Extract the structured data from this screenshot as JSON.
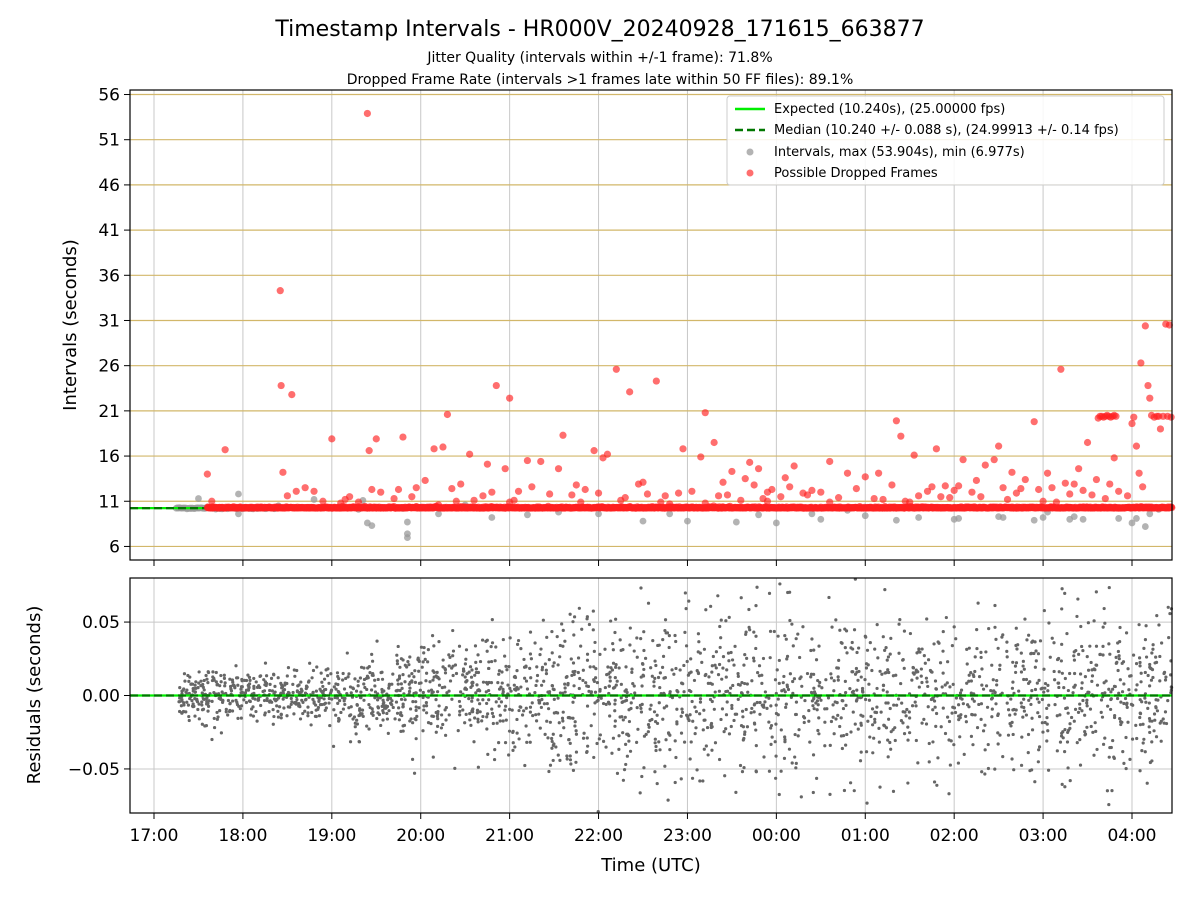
{
  "title": "Timestamp Intervals - HR000V_20240928_171615_663877",
  "subtitle_1": "Jitter Quality (intervals within +/-1 frame): 71.8%",
  "subtitle_2": "Dropped Frame Rate (intervals >1 frames late within 50 FF files): 89.1%",
  "colors": {
    "expected": "#00ee00",
    "median": "#007700",
    "intervals": "#9a9a9a",
    "dropped": "#ff2020",
    "residuals": "#666666",
    "hgrid_top": "#d2b76a",
    "grid": "#c8c8c8"
  },
  "chart_data": [
    {
      "type": "scatter",
      "name": "intervals",
      "xlabel": "",
      "ylabel": "Intervals (seconds)",
      "x_unit": "hours since 17:00 UTC",
      "xlim": [
        -0.27,
        11.45
      ],
      "ylim": [
        4.5,
        56.5
      ],
      "yticks": [
        6,
        11,
        16,
        21,
        26,
        31,
        36,
        41,
        46,
        51,
        56
      ],
      "ytick_labels": [
        "6",
        "11",
        "16",
        "21",
        "26",
        "31",
        "36",
        "41",
        "46",
        "51",
        "56"
      ],
      "grid": true,
      "legend_position": "top-right",
      "legend": [
        {
          "label": "Expected (10.240s), (25.00000 fps)",
          "style": "solid-line"
        },
        {
          "label": "Median (10.240 +/- 0.088 s), (24.99913 +/- 0.14 fps)",
          "style": "dashed-line"
        },
        {
          "label": "Intervals, max (53.904s), min (6.977s)",
          "style": "gray-dot"
        },
        {
          "label": "Possible Dropped Frames",
          "style": "red-dot"
        }
      ],
      "expected_line": 10.24,
      "median_line": 10.24,
      "band_start": 0.6,
      "band_end": 11.45,
      "band_value": 10.24,
      "gray_band": [
        0.25,
        1.4
      ],
      "gray_points": [
        [
          0.5,
          11.3
        ],
        [
          0.95,
          9.6
        ],
        [
          0.95,
          11.8
        ],
        [
          1.4,
          10.5
        ],
        [
          1.75,
          10.3
        ],
        [
          1.8,
          11.2
        ],
        [
          2.3,
          10.1
        ],
        [
          2.35,
          11.1
        ],
        [
          2.4,
          8.6
        ],
        [
          2.45,
          8.3
        ],
        [
          2.8,
          10.2
        ],
        [
          2.85,
          8.7
        ],
        [
          2.85,
          6.98
        ],
        [
          2.85,
          7.4
        ],
        [
          3.2,
          9.6
        ],
        [
          3.5,
          10.6
        ],
        [
          3.8,
          9.2
        ],
        [
          4.2,
          9.5
        ],
        [
          4.55,
          9.8
        ],
        [
          5.0,
          9.6
        ],
        [
          5.5,
          8.8
        ],
        [
          5.8,
          9.6
        ],
        [
          6.0,
          8.8
        ],
        [
          6.55,
          8.7
        ],
        [
          6.8,
          9.5
        ],
        [
          7.0,
          8.6
        ],
        [
          7.4,
          9.6
        ],
        [
          7.5,
          9.0
        ],
        [
          7.8,
          10.0
        ],
        [
          8.0,
          9.4
        ],
        [
          8.35,
          8.9
        ],
        [
          8.6,
          9.2
        ],
        [
          9.0,
          9.0
        ],
        [
          9.05,
          9.1
        ],
        [
          9.5,
          9.3
        ],
        [
          9.55,
          9.2
        ],
        [
          9.9,
          8.9
        ],
        [
          10.0,
          9.2
        ],
        [
          10.05,
          9.8
        ],
        [
          10.3,
          9.0
        ],
        [
          10.35,
          9.3
        ],
        [
          10.45,
          9.0
        ],
        [
          10.85,
          9.1
        ],
        [
          11.0,
          8.6
        ],
        [
          11.05,
          9.1
        ],
        [
          11.15,
          8.2
        ],
        [
          11.2,
          9.6
        ],
        [
          11.3,
          10.1
        ]
      ],
      "dropped_points": [
        [
          0.6,
          14.0
        ],
        [
          0.65,
          11.0
        ],
        [
          0.8,
          16.7
        ],
        [
          1.42,
          34.3
        ],
        [
          1.43,
          23.8
        ],
        [
          1.45,
          14.2
        ],
        [
          1.5,
          11.6
        ],
        [
          1.55,
          22.8
        ],
        [
          1.6,
          12.1
        ],
        [
          1.7,
          12.5
        ],
        [
          1.8,
          12.1
        ],
        [
          1.9,
          11.0
        ],
        [
          2.0,
          17.9
        ],
        [
          2.1,
          10.8
        ],
        [
          2.15,
          11.2
        ],
        [
          2.2,
          11.5
        ],
        [
          2.3,
          10.9
        ],
        [
          2.4,
          53.904
        ],
        [
          2.42,
          16.6
        ],
        [
          2.45,
          12.3
        ],
        [
          2.5,
          17.9
        ],
        [
          2.55,
          12.0
        ],
        [
          2.7,
          11.3
        ],
        [
          2.75,
          12.3
        ],
        [
          2.8,
          18.1
        ],
        [
          2.9,
          11.5
        ],
        [
          2.95,
          12.5
        ],
        [
          3.05,
          13.3
        ],
        [
          3.15,
          16.8
        ],
        [
          3.2,
          10.6
        ],
        [
          3.25,
          17.0
        ],
        [
          3.3,
          20.6
        ],
        [
          3.35,
          12.4
        ],
        [
          3.45,
          12.9
        ],
        [
          3.55,
          16.2
        ],
        [
          3.6,
          11.1
        ],
        [
          3.7,
          11.6
        ],
        [
          3.75,
          15.1
        ],
        [
          3.8,
          12.0
        ],
        [
          3.85,
          23.8
        ],
        [
          3.95,
          14.6
        ],
        [
          4.0,
          22.4
        ],
        [
          4.05,
          11.1
        ],
        [
          4.1,
          12.1
        ],
        [
          4.2,
          15.5
        ],
        [
          4.25,
          12.6
        ],
        [
          4.35,
          15.4
        ],
        [
          4.45,
          11.8
        ],
        [
          4.55,
          14.6
        ],
        [
          4.6,
          18.3
        ],
        [
          4.7,
          11.7
        ],
        [
          4.75,
          12.8
        ],
        [
          4.85,
          12.3
        ],
        [
          4.95,
          16.6
        ],
        [
          5.0,
          11.9
        ],
        [
          5.05,
          15.8
        ],
        [
          5.1,
          16.2
        ],
        [
          5.2,
          25.6
        ],
        [
          5.25,
          11.1
        ],
        [
          5.3,
          11.4
        ],
        [
          5.35,
          23.1
        ],
        [
          5.45,
          12.9
        ],
        [
          5.5,
          13.1
        ],
        [
          5.55,
          11.8
        ],
        [
          5.65,
          24.3
        ],
        [
          5.75,
          11.6
        ],
        [
          5.8,
          10.7
        ],
        [
          5.9,
          11.9
        ],
        [
          5.95,
          16.8
        ],
        [
          6.05,
          12.1
        ],
        [
          6.15,
          15.9
        ],
        [
          6.2,
          20.8
        ],
        [
          6.3,
          17.5
        ],
        [
          6.35,
          11.6
        ],
        [
          6.4,
          13.1
        ],
        [
          6.45,
          11.7
        ],
        [
          6.5,
          14.3
        ],
        [
          6.6,
          11.1
        ],
        [
          6.65,
          13.5
        ],
        [
          6.7,
          15.3
        ],
        [
          6.75,
          12.8
        ],
        [
          6.8,
          14.6
        ],
        [
          6.85,
          11.3
        ],
        [
          6.9,
          12.0
        ],
        [
          6.95,
          12.3
        ],
        [
          7.05,
          11.5
        ],
        [
          7.1,
          13.6
        ],
        [
          7.15,
          12.6
        ],
        [
          7.2,
          14.9
        ],
        [
          7.3,
          11.9
        ],
        [
          7.35,
          11.7
        ],
        [
          7.4,
          12.2
        ],
        [
          7.5,
          12.0
        ],
        [
          7.6,
          15.4
        ],
        [
          7.7,
          11.4
        ],
        [
          7.8,
          14.1
        ],
        [
          7.9,
          12.4
        ],
        [
          8.0,
          13.7
        ],
        [
          8.1,
          11.3
        ],
        [
          8.15,
          14.1
        ],
        [
          8.2,
          11.2
        ],
        [
          8.3,
          12.8
        ],
        [
          8.35,
          19.9
        ],
        [
          8.4,
          18.2
        ],
        [
          8.45,
          11.0
        ],
        [
          8.55,
          16.1
        ],
        [
          8.6,
          11.6
        ],
        [
          8.7,
          12.1
        ],
        [
          8.75,
          12.6
        ],
        [
          8.8,
          16.8
        ],
        [
          8.85,
          11.5
        ],
        [
          8.9,
          12.7
        ],
        [
          8.95,
          11.4
        ],
        [
          9.0,
          12.2
        ],
        [
          9.05,
          12.7
        ],
        [
          9.1,
          15.6
        ],
        [
          9.2,
          12.0
        ],
        [
          9.25,
          13.3
        ],
        [
          9.3,
          11.5
        ],
        [
          9.35,
          15.0
        ],
        [
          9.45,
          15.6
        ],
        [
          9.5,
          17.1
        ],
        [
          9.55,
          12.5
        ],
        [
          9.6,
          11.2
        ],
        [
          9.65,
          14.2
        ],
        [
          9.75,
          12.4
        ],
        [
          9.8,
          13.4
        ],
        [
          9.9,
          19.8
        ],
        [
          9.95,
          12.3
        ],
        [
          10.0,
          11.0
        ],
        [
          10.05,
          14.1
        ],
        [
          10.1,
          12.5
        ],
        [
          10.2,
          25.6
        ],
        [
          10.25,
          13.0
        ],
        [
          10.3,
          11.8
        ],
        [
          10.35,
          12.9
        ],
        [
          10.4,
          14.6
        ],
        [
          10.45,
          12.2
        ],
        [
          10.5,
          17.5
        ],
        [
          10.55,
          11.7
        ],
        [
          10.6,
          13.4
        ],
        [
          10.7,
          11.3
        ],
        [
          10.75,
          12.9
        ],
        [
          10.8,
          15.8
        ],
        [
          10.85,
          12.1
        ],
        [
          10.95,
          11.6
        ],
        [
          11.0,
          19.6
        ],
        [
          11.02,
          20.3
        ],
        [
          11.05,
          17.1
        ],
        [
          11.08,
          14.1
        ],
        [
          11.1,
          26.3
        ],
        [
          11.12,
          12.6
        ],
        [
          11.15,
          30.4
        ],
        [
          11.18,
          23.8
        ],
        [
          11.2,
          22.4
        ],
        [
          11.22,
          20.5
        ],
        [
          11.25,
          20.3
        ],
        [
          11.28,
          20.4
        ],
        [
          11.3,
          20.4
        ],
        [
          11.32,
          19.0
        ],
        [
          11.35,
          20.4
        ],
        [
          11.38,
          30.6
        ],
        [
          11.4,
          20.4
        ],
        [
          11.42,
          30.5
        ],
        [
          11.44,
          20.3
        ],
        [
          10.15,
          10.9
        ],
        [
          9.7,
          11.9
        ],
        [
          8.5,
          10.9
        ],
        [
          7.6,
          10.9
        ],
        [
          6.9,
          11.0
        ],
        [
          6.2,
          10.8
        ],
        [
          5.7,
          10.9
        ],
        [
          4.8,
          10.9
        ],
        [
          4.0,
          10.9
        ],
        [
          3.4,
          11.0
        ],
        [
          10.62,
          20.2
        ],
        [
          10.64,
          20.4
        ],
        [
          10.66,
          20.4
        ],
        [
          10.68,
          20.3
        ],
        [
          10.7,
          20.4
        ],
        [
          10.72,
          20.5
        ],
        [
          10.74,
          20.4
        ],
        [
          10.76,
          20.3
        ],
        [
          10.78,
          20.4
        ],
        [
          10.8,
          20.5
        ],
        [
          10.82,
          20.4
        ]
      ]
    },
    {
      "type": "scatter",
      "name": "residuals",
      "xlabel": "Time (UTC)",
      "ylabel": "Residuals (seconds)",
      "x_unit": "hours since 17:00 UTC",
      "xlim": [
        -0.27,
        11.45
      ],
      "ylim": [
        -0.08,
        0.08
      ],
      "yticks": [
        -0.05,
        0.0,
        0.05
      ],
      "ytick_labels": [
        "−0.05",
        "0.00",
        "0.05"
      ],
      "xticks": [
        0,
        1,
        2,
        3,
        4,
        5,
        6,
        7,
        8,
        9,
        10,
        11
      ],
      "xtick_labels": [
        "17:00",
        "18:00",
        "19:00",
        "20:00",
        "21:00",
        "22:00",
        "23:00",
        "00:00",
        "01:00",
        "02:00",
        "03:00",
        "04:00"
      ],
      "grid": true,
      "zero_line": 0.0,
      "residual_x_start": 0.28,
      "residual_x_end": 11.45,
      "residual_spread": [
        [
          0.28,
          0.009
        ],
        [
          1.0,
          0.009
        ],
        [
          2.0,
          0.011
        ],
        [
          3.0,
          0.016
        ],
        [
          4.0,
          0.023
        ],
        [
          5.5,
          0.028
        ],
        [
          7.0,
          0.028
        ],
        [
          9.0,
          0.028
        ],
        [
          11.45,
          0.028
        ]
      ],
      "residual_count": 2400
    }
  ]
}
